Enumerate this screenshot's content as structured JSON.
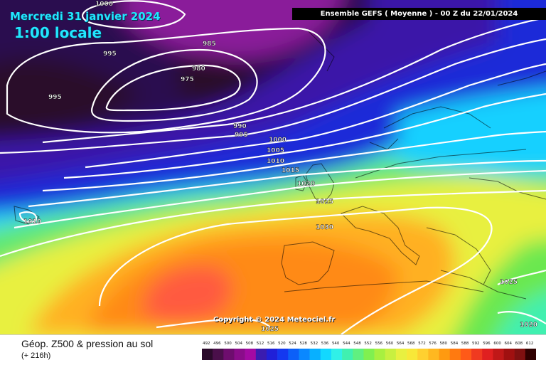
{
  "header": {
    "date": "Mercredi 31 janvier 2024",
    "time": "1:00 locale",
    "run": "Ensemble GEFS  ( Moyenne )  - 00 Z du 22/01/2024"
  },
  "map": {
    "copyright": "Copyright © 2024 Meteociel.fr",
    "pressure_labels": [
      "1000",
      "995",
      "985",
      "980",
      "975",
      "995",
      "990",
      "995",
      "1000",
      "1005",
      "1010",
      "1015",
      "1020",
      "1025",
      "1030",
      "1010",
      "1025",
      "1020",
      "1025"
    ]
  },
  "footer": {
    "field_title": "Géop. Z500 & pression au sol",
    "lead_time": "(+ 216h)"
  },
  "legend": {
    "values": [
      "492",
      "496",
      "500",
      "504",
      "508",
      "512",
      "516",
      "520",
      "524",
      "528",
      "532",
      "536",
      "540",
      "544",
      "548",
      "552",
      "556",
      "560",
      "564",
      "568",
      "572",
      "576",
      "580",
      "584",
      "588",
      "592",
      "596",
      "600",
      "604",
      "608",
      "612"
    ],
    "colors": [
      "#2a0a2a",
      "#4a0f4a",
      "#6e0d6e",
      "#8a0c8a",
      "#a30aa3",
      "#3a1cb0",
      "#2020d8",
      "#1438f0",
      "#0c60f8",
      "#0a88ff",
      "#08b0ff",
      "#12d8ff",
      "#30f0e8",
      "#40f0b0",
      "#60f080",
      "#80f050",
      "#a8f040",
      "#c8f040",
      "#e8f040",
      "#f8e838",
      "#ffd030",
      "#ffb820",
      "#ff9a10",
      "#ff7a10",
      "#ff5a18",
      "#f03a20",
      "#e02020",
      "#c01818",
      "#a01010",
      "#801010",
      "#300000"
    ]
  }
}
